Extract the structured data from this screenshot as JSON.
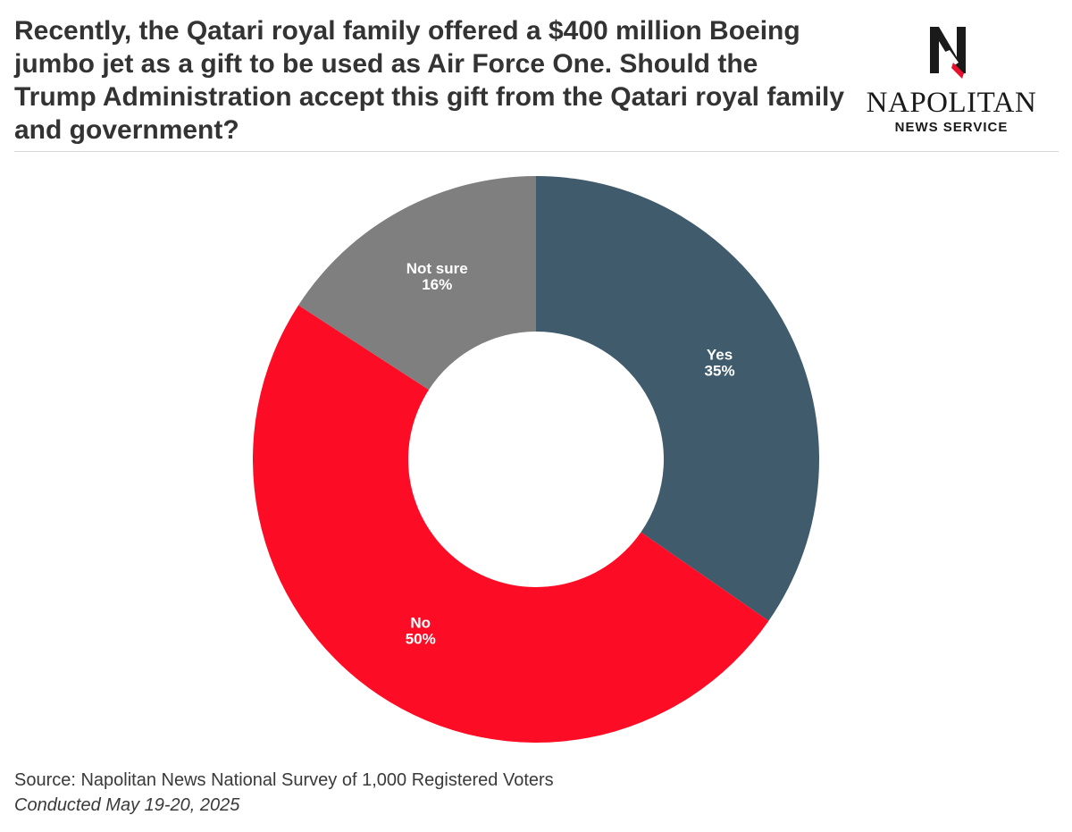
{
  "title": "Recently, the Qatari royal family offered a $400 million Boeing jumbo jet as a gift to be used as Air Force One. Should the Trump Administration accept this gift from the Qatari royal family and government?",
  "logo": {
    "name": "NAPOLITAN",
    "sub": "NEWS SERVICE",
    "icon": "napolitan-n-eagle-logo",
    "colors": {
      "mark": "#1a1a1a",
      "accent": "#e8112d"
    }
  },
  "chart_data": {
    "type": "pie",
    "donut": true,
    "title": "",
    "slices": [
      {
        "label": "Yes",
        "value": 35,
        "display": "35%",
        "color": "#3f5b6c"
      },
      {
        "label": "No",
        "value": 50,
        "display": "50%",
        "color": "#fc0d25"
      },
      {
        "label": "Not sure",
        "value": 16,
        "display": "16%",
        "color": "#7f7f7f"
      }
    ],
    "start": "12 o'clock",
    "direction": "clockwise"
  },
  "footer": {
    "source": "Source: Napolitan News National Survey of 1,000 Registered Voters",
    "date": "Conducted May 19-20, 2025"
  }
}
